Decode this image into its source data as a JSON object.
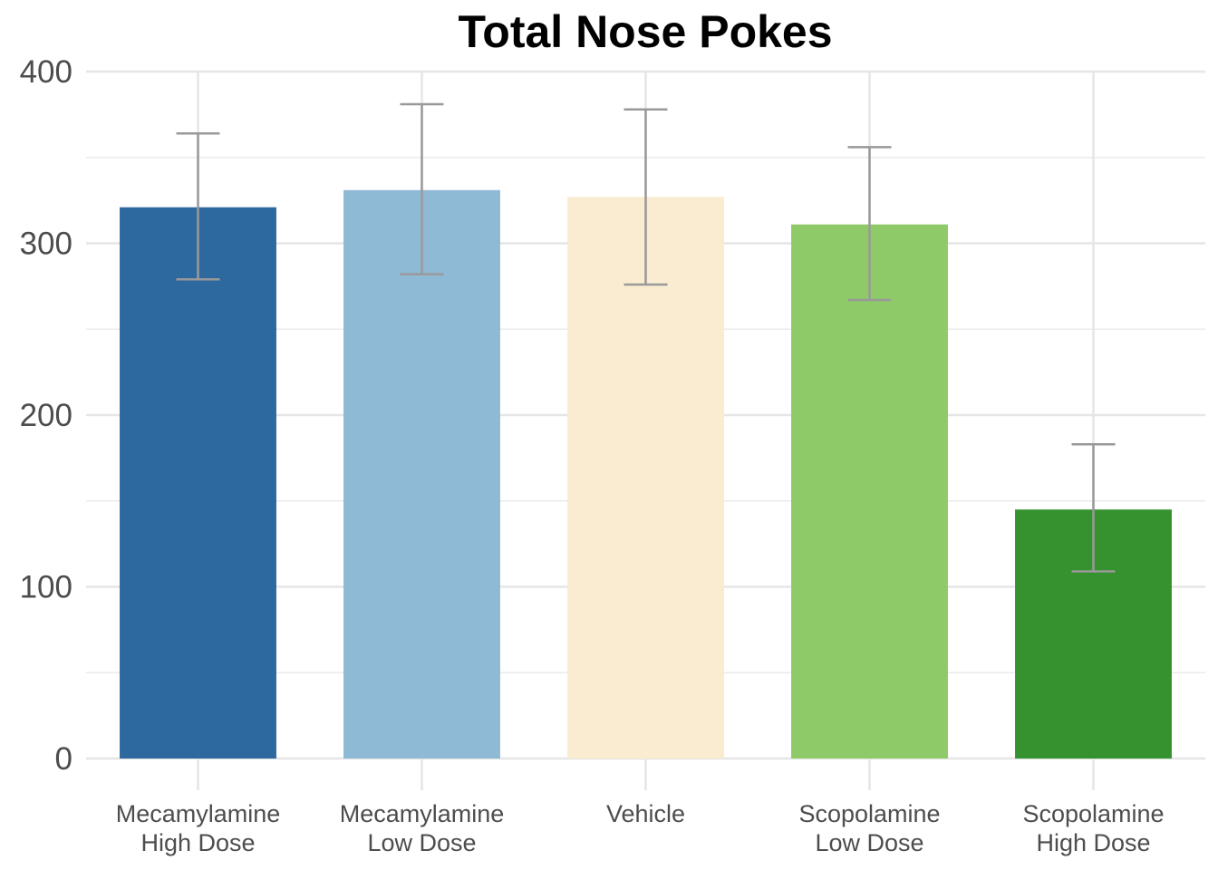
{
  "chart_data": {
    "type": "bar",
    "title": "Total Nose Pokes",
    "xlabel": "",
    "ylabel": "",
    "ylim": [
      0,
      400
    ],
    "yticks": [
      "0",
      "100",
      "200",
      "300",
      "400"
    ],
    "grid": true,
    "legend": "none",
    "categories": [
      [
        "Mecamylamine",
        "High Dose"
      ],
      [
        "Mecamylamine",
        "Low Dose"
      ],
      [
        "Vehicle"
      ],
      [
        "Scopolamine",
        "Low Dose"
      ],
      [
        "Scopolamine",
        "High Dose"
      ]
    ],
    "values": [
      321,
      331,
      327,
      311,
      145
    ],
    "error_low": [
      279,
      282,
      276,
      267,
      109
    ],
    "error_high": [
      364,
      381,
      378,
      356,
      183
    ],
    "colors": [
      "#2d689e",
      "#8fbad6",
      "#f9ecd0",
      "#8fca68",
      "#35922e"
    ],
    "error_color": "#999999"
  }
}
